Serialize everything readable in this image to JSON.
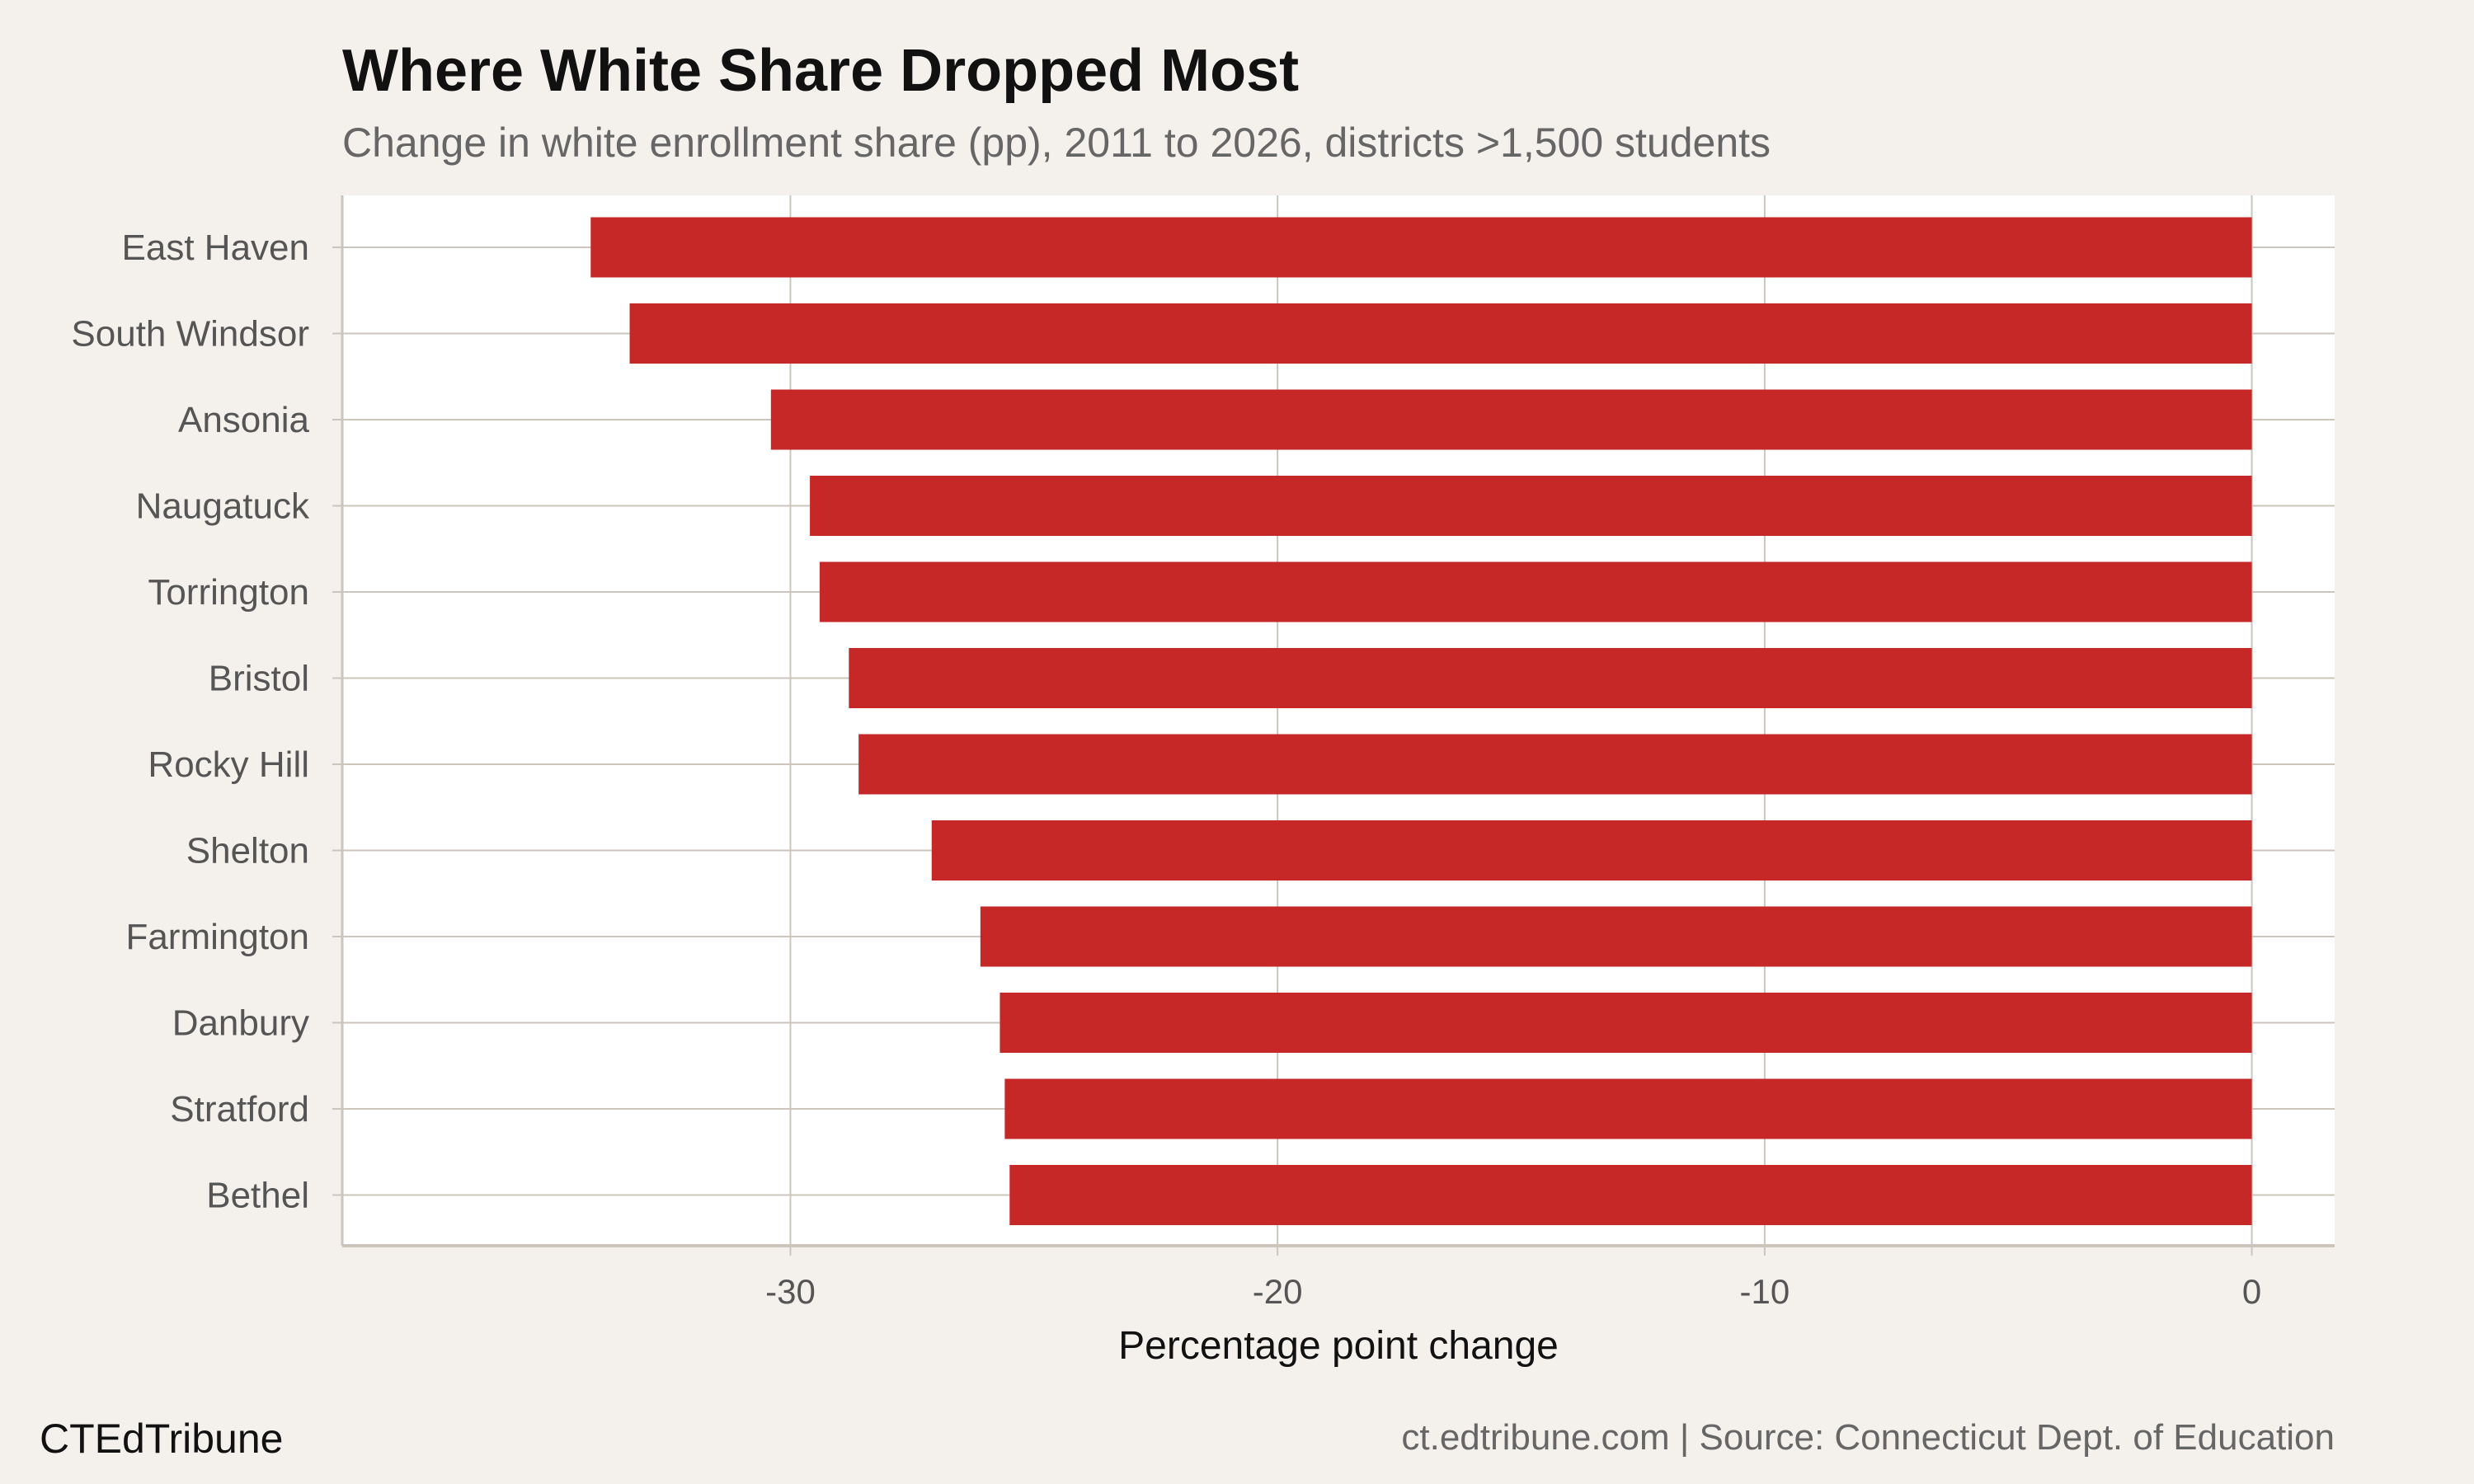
{
  "chart_data": {
    "type": "bar",
    "orientation": "horizontal",
    "title": "Where White Share Dropped Most",
    "subtitle": "Change in white enrollment share (pp), 2011 to 2026, districts >1,500 students",
    "xlabel": "Percentage point change",
    "ylabel": "",
    "categories": [
      "East Haven",
      "South Windsor",
      "Ansonia",
      "Naugatuck",
      "Torrington",
      "Bristol",
      "Rocky Hill",
      "Shelton",
      "Farmington",
      "Danbury",
      "Stratford",
      "Bethel"
    ],
    "values": [
      -34.1,
      -33.3,
      -30.4,
      -29.6,
      -29.4,
      -28.8,
      -28.6,
      -27.1,
      -26.1,
      -25.7,
      -25.6,
      -25.5
    ],
    "xlim": [
      -39.2,
      1.7
    ],
    "xticks": [
      -30,
      -20,
      -10,
      0
    ],
    "xtick_labels": [
      "-30",
      "-20",
      "-10",
      "0"
    ],
    "grid": true,
    "bar_color": "#c62828",
    "panel_background": "#ffffff",
    "page_background": "#f4f1ec"
  },
  "footer": {
    "brand": "CTEdTribune",
    "source": "ct.edtribune.com | Source: Connecticut Dept. of Education"
  }
}
